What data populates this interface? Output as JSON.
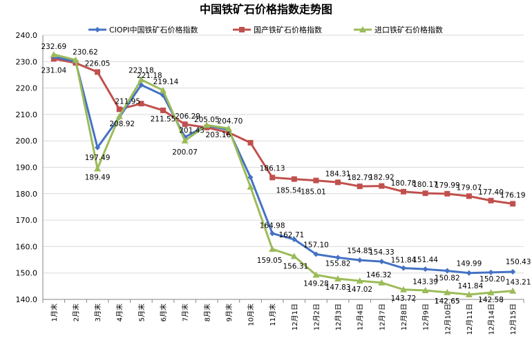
{
  "chart_data": {
    "type": "line",
    "title": "中国铁矿石价格指数走势图",
    "ylim": [
      140,
      240
    ],
    "yticks": [
      "140.0",
      "150.0",
      "160.0",
      "170.0",
      "180.0",
      "190.0",
      "200.0",
      "210.0",
      "220.0",
      "230.0",
      "240.0"
    ],
    "categories": [
      "1月末",
      "2月末",
      "3月末",
      "4月末",
      "5月末",
      "6月末",
      "7月末",
      "8月末",
      "9月末",
      "10月末",
      "11月末",
      "12月1日",
      "12月2日",
      "12月3日",
      "12月4日",
      "12月7日",
      "12月8日",
      "12月9日",
      "12月10日",
      "12月11日",
      "12月14日",
      "12月15日"
    ],
    "legend_position": "top",
    "grid": true,
    "series": [
      {
        "name": "CIOPI中国铁矿石价格指数",
        "color": "#4472c4",
        "marker": "diamond",
        "values": [
          231.8,
          230.0,
          197.49,
          208.92,
          221.18,
          217.3,
          201.43,
          205.8,
          204.2,
          186.2,
          164.98,
          162.71,
          157.1,
          155.82,
          154.85,
          154.33,
          151.84,
          151.44,
          150.82,
          149.99,
          150.2,
          150.43
        ],
        "labels": [
          "",
          "",
          "197.49",
          "208.92",
          "221.18",
          "",
          "201.43",
          "",
          "",
          "",
          "164.98",
          "162.71",
          "157.10",
          "155.82",
          "154.85",
          "154.33",
          "151.84",
          "151.44",
          "150.82",
          "149.99",
          "150.20",
          "150.43"
        ]
      },
      {
        "name": "国产铁矿石价格指数",
        "color": "#c0504d",
        "marker": "square",
        "values": [
          231.04,
          229.5,
          226.05,
          211.95,
          214.1,
          211.55,
          206.29,
          205.05,
          203.16,
          199.3,
          186.13,
          185.54,
          185.01,
          184.31,
          182.79,
          182.92,
          180.78,
          180.17,
          179.99,
          179.07,
          177.4,
          176.19
        ],
        "labels": [
          "231.04",
          "",
          "226.05",
          "211.95",
          "",
          "211.55",
          "206.29",
          "205.05",
          "203.16",
          "",
          "186.13",
          "185.54",
          "185.01",
          "184.31",
          "182.79",
          "182.92",
          "180.78",
          "180.17",
          "179.99",
          "179.07",
          "177.40",
          "176.19"
        ]
      },
      {
        "name": "进口铁矿石价格指数",
        "color": "#9bbb59",
        "marker": "triangle",
        "values": [
          232.69,
          230.62,
          189.49,
          209.3,
          223.18,
          219.14,
          200.07,
          206.0,
          204.7,
          182.6,
          159.05,
          156.31,
          149.28,
          147.83,
          147.02,
          146.32,
          143.72,
          143.39,
          142.65,
          141.84,
          142.58,
          143.21
        ],
        "labels": [
          "232.69",
          "230.62",
          "189.49",
          "",
          "223.18",
          "219.14",
          "200.07",
          "",
          "204.70",
          "",
          "159.05",
          "156.31",
          "149.28",
          "147.83",
          "147.02",
          "146.32",
          "143.72",
          "143.39",
          "142.65",
          "141.84",
          "142.58",
          "143.21"
        ]
      }
    ]
  }
}
